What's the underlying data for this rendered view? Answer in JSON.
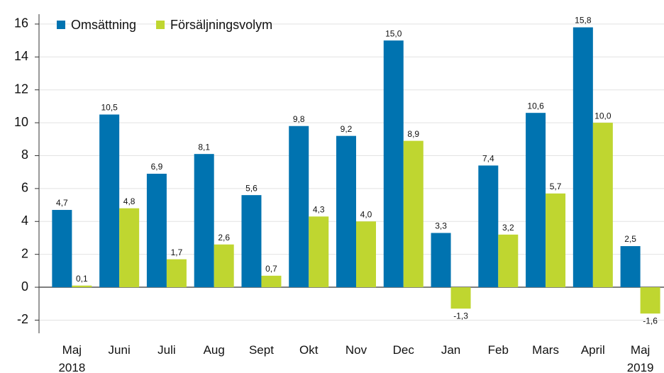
{
  "chart_data": {
    "type": "bar",
    "categories": [
      "Maj 2018",
      "Juni",
      "Juli",
      "Aug",
      "Sept",
      "Okt",
      "Nov",
      "Dec",
      "Jan",
      "Feb",
      "Mars",
      "April",
      "Maj 2019"
    ],
    "series": [
      {
        "name": "Omsättning",
        "color": "#0073b0",
        "values": [
          4.7,
          10.5,
          6.9,
          8.1,
          5.6,
          9.8,
          9.2,
          15.0,
          3.3,
          7.4,
          10.6,
          15.8,
          2.5
        ],
        "value_labels": [
          "4,7",
          "10,5",
          "6,9",
          "8,1",
          "5,6",
          "9,8",
          "9,2",
          "15,0",
          "3,3",
          "7,4",
          "10,6",
          "15,8",
          "2,5"
        ]
      },
      {
        "name": "Försäljningsvolym",
        "color": "#bfd630",
        "values": [
          0.1,
          4.8,
          1.7,
          2.6,
          0.7,
          4.3,
          4.0,
          8.9,
          -1.3,
          3.2,
          5.7,
          10.0,
          -1.6
        ],
        "value_labels": [
          "0,1",
          "4,8",
          "1,7",
          "2,6",
          "0,7",
          "4,3",
          "4,0",
          "8,9",
          "-1,3",
          "3,2",
          "5,7",
          "10,0",
          "-1,6"
        ]
      }
    ],
    "ylim": [
      -2.8,
      16.6
    ],
    "yticks": [
      -2,
      0,
      2,
      4,
      6,
      8,
      10,
      12,
      14,
      16
    ],
    "grid": true,
    "legend": "top-left"
  }
}
